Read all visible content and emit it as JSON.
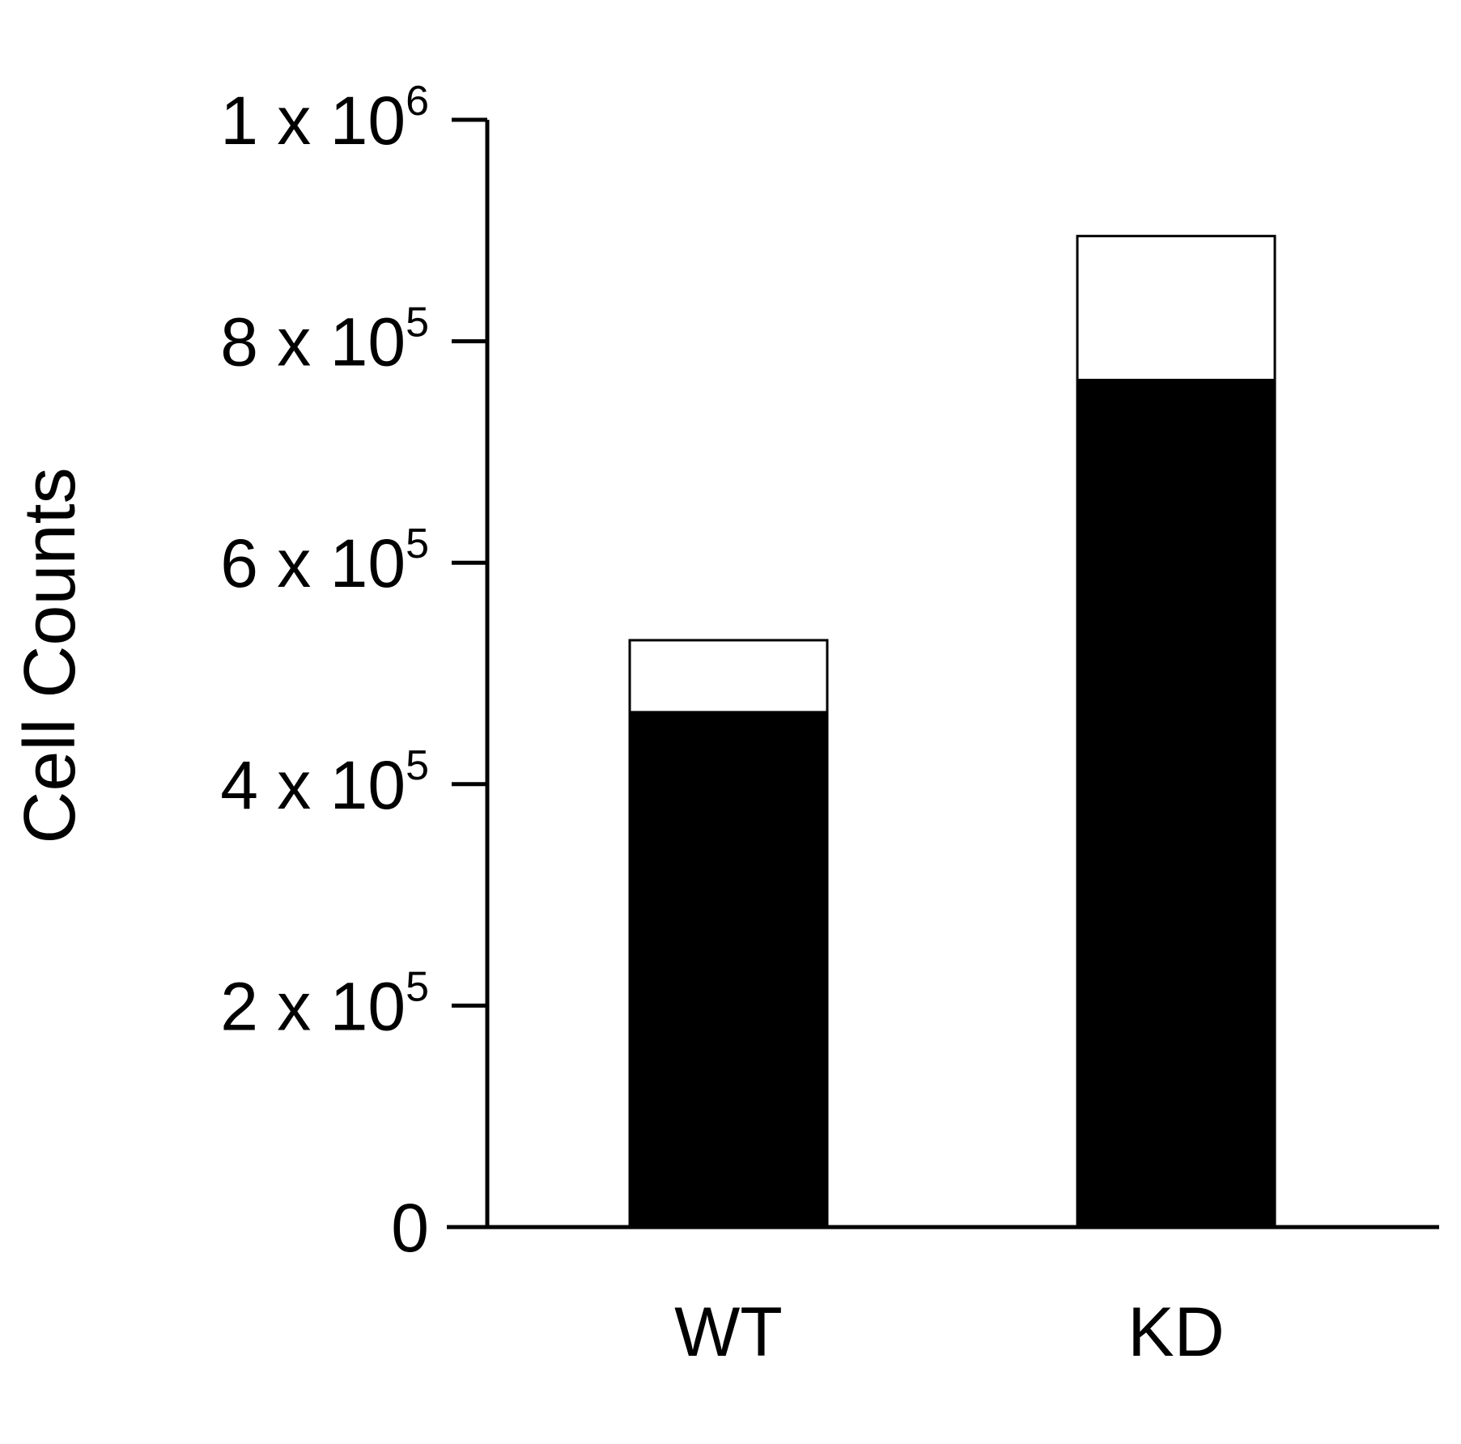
{
  "chart_data": {
    "type": "bar",
    "stacked": true,
    "categories": [
      "WT",
      "KD"
    ],
    "series": [
      {
        "values": [
          465000,
          765000
        ],
        "color": "#000000"
      },
      {
        "values": [
          65000,
          130000
        ],
        "color": "#ffffff"
      }
    ],
    "totals": [
      530000,
      895000
    ],
    "ylabel": "Cell Counts",
    "xlabel": "",
    "ylim": [
      0,
      1000000
    ],
    "yticks": [
      {
        "value": 0,
        "mantissa": "0",
        "exponent": ""
      },
      {
        "value": 200000,
        "mantissa": "2 x 10",
        "exponent": "5"
      },
      {
        "value": 400000,
        "mantissa": "4 x 10",
        "exponent": "5"
      },
      {
        "value": 600000,
        "mantissa": "6 x 10",
        "exponent": "5"
      },
      {
        "value": 800000,
        "mantissa": "8 x 10",
        "exponent": "5"
      },
      {
        "value": 1000000,
        "mantissa": "1 x 10",
        "exponent": "6"
      }
    ],
    "grid": false,
    "legend": "none"
  }
}
